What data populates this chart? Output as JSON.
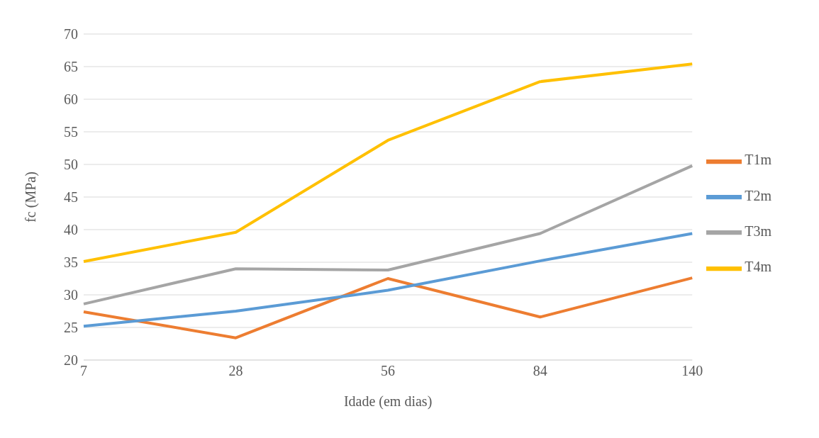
{
  "chart_data": {
    "type": "line",
    "xlabel": "Idade (em dias)",
    "ylabel": "fc (MPa)",
    "categories": [
      "7",
      "28",
      "56",
      "84",
      "140"
    ],
    "series": [
      {
        "name": "T1m",
        "color": "#ed7d31",
        "values": [
          27.4,
          23.4,
          32.5,
          26.6,
          32.6
        ]
      },
      {
        "name": "T2m",
        "color": "#5b9bd5",
        "values": [
          25.2,
          27.5,
          30.7,
          35.2,
          39.4
        ]
      },
      {
        "name": "T3m",
        "color": "#a5a5a5",
        "values": [
          28.6,
          34.0,
          33.8,
          39.4,
          49.8
        ]
      },
      {
        "name": "T4m",
        "color": "#ffc000",
        "values": [
          35.1,
          39.6,
          53.7,
          62.7,
          65.4
        ]
      }
    ],
    "ylim": [
      20,
      70
    ],
    "yticks": [
      20,
      25,
      30,
      35,
      40,
      45,
      50,
      55,
      60,
      65,
      70
    ],
    "grid": "y",
    "legend": "right",
    "marker": "none",
    "line_style": "solid"
  }
}
